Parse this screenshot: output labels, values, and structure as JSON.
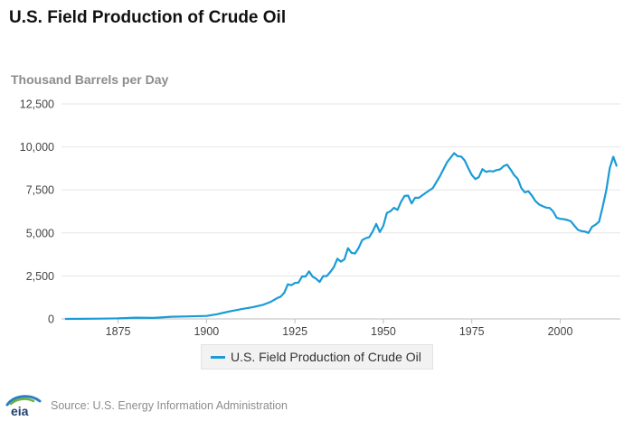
{
  "colors": {
    "series": "#1a9bd7",
    "logo_blue": "#2a7fc1",
    "logo_green": "#6cb33f",
    "logo_text": "#1f3f6b"
  },
  "chart_data": {
    "type": "line",
    "title": "U.S. Field Production of Crude Oil",
    "ylabel": "Thousand Barrels per Day",
    "xlabel": "",
    "ylim": [
      0,
      12500
    ],
    "xlim": [
      1859,
      2017
    ],
    "y_ticks": [
      "0",
      "2,500",
      "5,000",
      "7,500",
      "10,000",
      "12,500"
    ],
    "y_tick_values": [
      0,
      2500,
      5000,
      7500,
      10000,
      12500
    ],
    "x_ticks": [
      "1875",
      "1900",
      "1925",
      "1950",
      "1975",
      "2000"
    ],
    "x_tick_values": [
      1875,
      1900,
      1925,
      1950,
      1975,
      2000
    ],
    "grid": "horizontal",
    "legend_position": "bottom-center",
    "series": [
      {
        "name": "U.S. Field Production of Crude Oil",
        "x": [
          1860,
          1865,
          1870,
          1875,
          1880,
          1885,
          1890,
          1895,
          1900,
          1903,
          1905,
          1907,
          1910,
          1913,
          1916,
          1918,
          1920,
          1921,
          1922,
          1923,
          1924,
          1925,
          1926,
          1927,
          1928,
          1929,
          1930,
          1931,
          1932,
          1933,
          1934,
          1935,
          1936,
          1937,
          1938,
          1939,
          1940,
          1941,
          1942,
          1943,
          1944,
          1945,
          1946,
          1947,
          1948,
          1949,
          1950,
          1951,
          1952,
          1953,
          1954,
          1955,
          1956,
          1957,
          1958,
          1959,
          1960,
          1962,
          1964,
          1966,
          1968,
          1970,
          1971,
          1972,
          1973,
          1974,
          1975,
          1976,
          1977,
          1978,
          1979,
          1980,
          1981,
          1982,
          1983,
          1984,
          1985,
          1986,
          1987,
          1988,
          1989,
          1990,
          1991,
          1992,
          1993,
          1994,
          1995,
          1996,
          1997,
          1998,
          1999,
          2000,
          2001,
          2002,
          2003,
          2004,
          2005,
          2006,
          2007,
          2008,
          2009,
          2010,
          2011,
          2012,
          2013,
          2014,
          2015,
          2016
        ],
        "values": [
          1,
          7,
          14,
          33,
          72,
          60,
          125,
          145,
          175,
          275,
          370,
          455,
          575,
          680,
          820,
          975,
          1215,
          1295,
          1530,
          2010,
          1960,
          2090,
          2110,
          2470,
          2470,
          2760,
          2460,
          2330,
          2150,
          2490,
          2490,
          2730,
          3010,
          3500,
          3330,
          3460,
          4110,
          3840,
          3800,
          4130,
          4580,
          4690,
          4750,
          5090,
          5520,
          5050,
          5410,
          6160,
          6260,
          6460,
          6340,
          6810,
          7150,
          7170,
          6710,
          7050,
          7040,
          7330,
          7610,
          8300,
          9100,
          9640,
          9460,
          9440,
          9210,
          8770,
          8370,
          8130,
          8240,
          8710,
          8550,
          8600,
          8570,
          8650,
          8690,
          8880,
          8970,
          8680,
          8350,
          8140,
          7610,
          7360,
          7420,
          7170,
          6850,
          6660,
          6560,
          6470,
          6450,
          6250,
          5880,
          5820,
          5800,
          5750,
          5680,
          5420,
          5180,
          5100,
          5080,
          5000,
          5350,
          5480,
          5650,
          6500,
          7470,
          8760,
          9430,
          8860
        ]
      }
    ]
  },
  "footer": {
    "logo_text": "eia",
    "source": "Source: U.S. Energy Information Administration"
  }
}
